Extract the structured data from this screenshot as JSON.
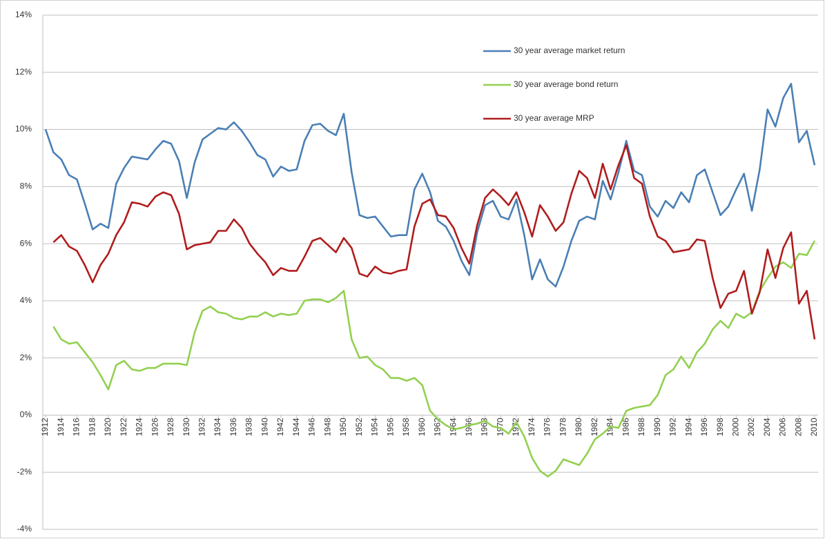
{
  "chart_data": {
    "type": "line",
    "x": [
      1912,
      1913,
      1914,
      1915,
      1916,
      1917,
      1918,
      1919,
      1920,
      1921,
      1922,
      1923,
      1924,
      1925,
      1926,
      1927,
      1928,
      1929,
      1930,
      1931,
      1932,
      1933,
      1934,
      1935,
      1936,
      1937,
      1938,
      1939,
      1940,
      1941,
      1942,
      1943,
      1944,
      1945,
      1946,
      1947,
      1948,
      1949,
      1950,
      1951,
      1952,
      1953,
      1954,
      1955,
      1956,
      1957,
      1958,
      1959,
      1960,
      1961,
      1962,
      1963,
      1964,
      1965,
      1966,
      1967,
      1968,
      1969,
      1970,
      1971,
      1972,
      1973,
      1974,
      1975,
      1976,
      1977,
      1978,
      1979,
      1980,
      1981,
      1982,
      1983,
      1984,
      1985,
      1986,
      1987,
      1988,
      1989,
      1990,
      1991,
      1992,
      1993,
      1994,
      1995,
      1996,
      1997,
      1998,
      1999,
      2000,
      2001,
      2002,
      2003,
      2004,
      2005,
      2006,
      2007,
      2008,
      2009,
      2010
    ],
    "xlim": [
      1912,
      2010
    ],
    "xticks": [
      1912,
      1914,
      1916,
      1918,
      1920,
      1922,
      1924,
      1926,
      1928,
      1930,
      1932,
      1934,
      1936,
      1938,
      1940,
      1942,
      1944,
      1946,
      1948,
      1950,
      1952,
      1954,
      1956,
      1958,
      1960,
      1962,
      1964,
      1966,
      1968,
      1970,
      1972,
      1974,
      1976,
      1978,
      1980,
      1982,
      1984,
      1986,
      1988,
      1990,
      1992,
      1994,
      1996,
      1998,
      2000,
      2002,
      2004,
      2006,
      2008,
      2010
    ],
    "ylim": [
      -4,
      14
    ],
    "yticks": [
      {
        "value": -4,
        "label": "-4%"
      },
      {
        "value": -2,
        "label": "-2%"
      },
      {
        "value": 0,
        "label": "0%"
      },
      {
        "value": 2,
        "label": "2%"
      },
      {
        "value": 4,
        "label": "4%"
      },
      {
        "value": 6,
        "label": "6%"
      },
      {
        "value": 8,
        "label": "8%"
      },
      {
        "value": 10,
        "label": "10%"
      },
      {
        "value": 12,
        "label": "12%"
      },
      {
        "value": 14,
        "label": "14%"
      }
    ],
    "grid": true,
    "legend": "top-right",
    "series": [
      {
        "name": "30 year average market return",
        "color": "#4a7fb5",
        "values": [
          10.0,
          9.2,
          8.95,
          8.4,
          8.25,
          7.4,
          6.5,
          6.7,
          6.55,
          8.1,
          8.65,
          9.05,
          9.0,
          8.95,
          9.3,
          9.6,
          9.5,
          8.9,
          7.6,
          8.85,
          9.65,
          9.85,
          10.05,
          10.0,
          10.25,
          9.95,
          9.55,
          9.1,
          8.95,
          8.35,
          8.7,
          8.55,
          8.6,
          9.6,
          10.15,
          10.2,
          9.95,
          9.8,
          10.55,
          8.5,
          7.0,
          6.9,
          6.95,
          6.6,
          6.25,
          6.3,
          6.3,
          7.9,
          8.45,
          7.8,
          6.8,
          6.6,
          6.1,
          5.4,
          4.9,
          6.4,
          7.35,
          7.5,
          6.95,
          6.85,
          7.55,
          6.3,
          4.75,
          5.45,
          4.75,
          4.5,
          5.2,
          6.1,
          6.8,
          6.95,
          6.85,
          8.2,
          7.55,
          8.5,
          9.6,
          8.55,
          8.4,
          7.3,
          6.95,
          7.5,
          7.25,
          7.8,
          7.45,
          8.4,
          8.6,
          7.8,
          7.0,
          7.3,
          7.9,
          8.45,
          7.15,
          8.6,
          10.7,
          10.1,
          11.1,
          11.6,
          9.55,
          9.95,
          8.75
        ]
      },
      {
        "name": "30 year average bond return",
        "color": "#92d050",
        "values": [
          null,
          3.1,
          2.65,
          2.5,
          2.55,
          2.2,
          1.85,
          1.4,
          0.9,
          1.75,
          1.9,
          1.6,
          1.55,
          1.65,
          1.65,
          1.8,
          1.8,
          1.8,
          1.75,
          2.9,
          3.65,
          3.8,
          3.6,
          3.55,
          3.4,
          3.35,
          3.45,
          3.45,
          3.6,
          3.45,
          3.55,
          3.5,
          3.55,
          4.0,
          4.05,
          4.05,
          3.95,
          4.1,
          4.35,
          2.65,
          2.0,
          2.05,
          1.75,
          1.6,
          1.3,
          1.3,
          1.2,
          1.3,
          1.05,
          0.15,
          -0.15,
          -0.35,
          -0.5,
          -0.45,
          -0.35,
          -0.3,
          -0.2,
          -0.4,
          -0.45,
          -0.65,
          -0.25,
          -0.75,
          -1.5,
          -1.95,
          -2.15,
          -1.95,
          -1.55,
          -1.65,
          -1.75,
          -1.35,
          -0.85,
          -0.65,
          -0.4,
          -0.45,
          0.15,
          0.25,
          0.3,
          0.35,
          0.7,
          1.4,
          1.6,
          2.05,
          1.65,
          2.2,
          2.5,
          3.0,
          3.3,
          3.05,
          3.55,
          3.4,
          3.6,
          4.35,
          4.8,
          5.2,
          5.35,
          5.15,
          5.65,
          5.6,
          6.1
        ]
      },
      {
        "name": "30 year average MRP",
        "color": "#b01c1c",
        "values": [
          null,
          6.05,
          6.3,
          5.9,
          5.75,
          5.25,
          4.65,
          5.25,
          5.65,
          6.3,
          6.75,
          7.45,
          7.4,
          7.3,
          7.65,
          7.8,
          7.7,
          7.05,
          5.8,
          5.95,
          6.0,
          6.05,
          6.45,
          6.45,
          6.85,
          6.55,
          6.0,
          5.65,
          5.35,
          4.9,
          5.15,
          5.05,
          5.05,
          5.55,
          6.1,
          6.2,
          5.95,
          5.7,
          6.2,
          5.85,
          4.95,
          4.85,
          5.2,
          5.0,
          4.95,
          5.05,
          5.1,
          6.6,
          7.4,
          7.55,
          7.0,
          6.95,
          6.55,
          5.85,
          5.3,
          6.65,
          7.6,
          7.9,
          7.65,
          7.35,
          7.8,
          7.1,
          6.25,
          7.35,
          6.95,
          6.45,
          6.75,
          7.75,
          8.55,
          8.3,
          7.6,
          8.8,
          7.9,
          8.75,
          9.45,
          8.3,
          8.1,
          6.95,
          6.25,
          6.1,
          5.7,
          5.75,
          5.8,
          6.15,
          6.1,
          4.8,
          3.75,
          4.25,
          4.35,
          5.05,
          3.55,
          4.3,
          5.8,
          4.8,
          5.85,
          6.4,
          3.9,
          4.35,
          2.65
        ]
      }
    ]
  }
}
